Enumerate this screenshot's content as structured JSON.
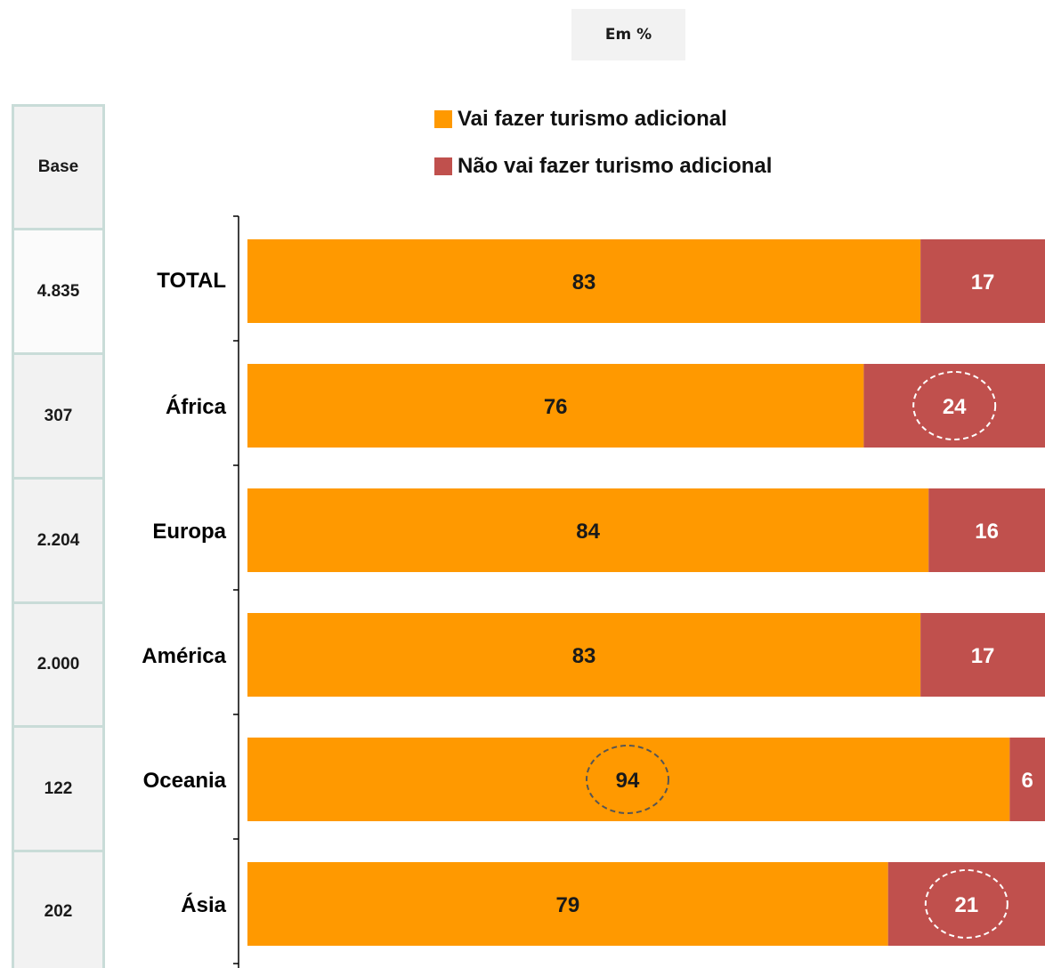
{
  "unit_label": "Em %",
  "base_header": "Base",
  "bases": [
    "4.835",
    "307",
    "2.204",
    "2.000",
    "122",
    "202"
  ],
  "colors": {
    "series1": "#ff9900",
    "series2": "#c0504d",
    "text_dark": "#1a1a1a",
    "text_light": "#ffffff"
  },
  "chart_data": {
    "type": "bar",
    "orientation": "horizontal",
    "stacked": true,
    "categories": [
      "TOTAL",
      "África",
      "Europa",
      "América",
      "Oceania",
      "Ásia"
    ],
    "series": [
      {
        "name": "Vai fazer turismo adicional",
        "values": [
          83,
          76,
          84,
          83,
          94,
          79
        ]
      },
      {
        "name": "Não vai fazer turismo adicional",
        "values": [
          17,
          24,
          16,
          17,
          6,
          21
        ]
      }
    ],
    "xlim": [
      0,
      100
    ],
    "legend_position": "top",
    "grid": false,
    "highlighted": [
      {
        "category": "África",
        "series": "Não vai fazer turismo adicional"
      },
      {
        "category": "Oceania",
        "series": "Vai fazer turismo adicional"
      },
      {
        "category": "Ásia",
        "series": "Não vai fazer turismo adicional"
      }
    ]
  }
}
